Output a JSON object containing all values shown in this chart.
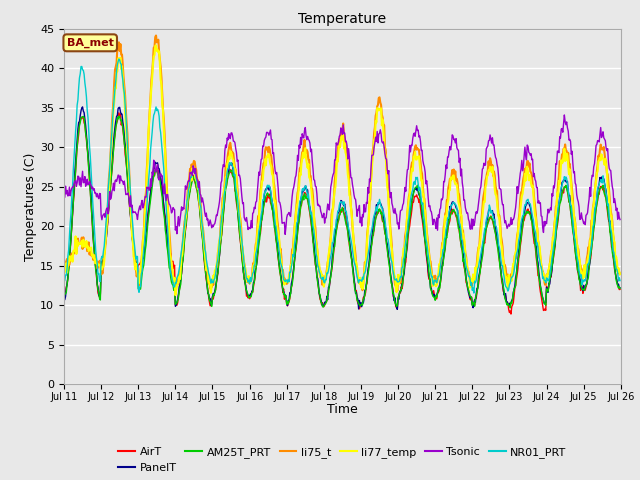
{
  "title": "Temperature",
  "xlabel": "Time",
  "ylabel": "Temperatures (C)",
  "ylim": [
    0,
    45
  ],
  "yticks": [
    0,
    5,
    10,
    15,
    20,
    25,
    30,
    35,
    40,
    45
  ],
  "bg_color": "#e8e8e8",
  "plot_bg_color": "#e8e8e8",
  "grid_color": "#ffffff",
  "annotation_text": "BA_met",
  "annotation_bg": "#ffff99",
  "annotation_border": "#8B4513",
  "annotation_text_color": "#8B0000",
  "series": {
    "AirT": {
      "color": "#ff0000",
      "lw": 1.0
    },
    "PanelT": {
      "color": "#00008b",
      "lw": 1.0
    },
    "AM25T_PRT": {
      "color": "#00cc00",
      "lw": 1.0
    },
    "li75_t": {
      "color": "#ff8c00",
      "lw": 1.5
    },
    "li77_temp": {
      "color": "#ffff00",
      "lw": 1.5
    },
    "Tsonic": {
      "color": "#9900cc",
      "lw": 1.0
    },
    "NR01_PRT": {
      "color": "#00cccc",
      "lw": 1.0
    }
  },
  "legend_order": [
    "AirT",
    "PanelT",
    "AM25T_PRT",
    "li75_t",
    "li77_temp",
    "Tsonic",
    "NR01_PRT"
  ],
  "n_days": 15,
  "start_day": 11,
  "AirT_peaks": [
    34,
    34,
    27,
    26,
    27,
    24,
    24,
    22,
    22,
    24,
    22,
    21,
    22,
    25,
    25
  ],
  "AirT_mins": [
    11,
    15,
    15,
    10,
    11,
    11,
    10,
    10,
    10,
    11,
    11,
    10,
    9,
    12,
    12
  ],
  "PanelT_peaks": [
    35,
    35,
    28,
    27,
    28,
    25,
    25,
    23,
    23,
    25,
    23,
    22,
    23,
    26,
    26
  ],
  "PanelT_mins": [
    11,
    15,
    13,
    10,
    11,
    11,
    10,
    10,
    10,
    11,
    11,
    10,
    10,
    12,
    12
  ],
  "AM25T_peaks": [
    34,
    34,
    27,
    26,
    27,
    24,
    24,
    22,
    22,
    25,
    22,
    21,
    22,
    25,
    25
  ],
  "AM25T_mins": [
    11,
    15,
    12,
    10,
    11,
    11,
    10,
    10,
    10,
    11,
    11,
    10,
    10,
    12,
    12
  ],
  "li75_peaks": [
    18,
    43,
    44,
    28,
    30,
    30,
    30,
    32,
    36,
    30,
    27,
    28,
    28,
    30,
    30
  ],
  "li75_mins": [
    15,
    14,
    13,
    12,
    13,
    13,
    13,
    13,
    12,
    13,
    13,
    13,
    13,
    14,
    14
  ],
  "li77_peaks": [
    18,
    41,
    43,
    27,
    29,
    29,
    29,
    31,
    35,
    29,
    26,
    27,
    27,
    29,
    29
  ],
  "li77_mins": [
    15,
    14,
    13,
    12,
    13,
    13,
    13,
    13,
    12,
    13,
    13,
    13,
    13,
    14,
    14
  ],
  "Tsonic_peaks": [
    26,
    26,
    27,
    27,
    32,
    32,
    32,
    32,
    32,
    32,
    31,
    31,
    30,
    33,
    32
  ],
  "Tsonic_mins": [
    24,
    21,
    22,
    20,
    20,
    20,
    21,
    21,
    21,
    21,
    20,
    20,
    20,
    21,
    21
  ],
  "NR01_peaks": [
    40,
    41,
    35,
    27,
    28,
    25,
    25,
    23,
    23,
    26,
    23,
    22,
    23,
    26,
    26
  ],
  "NR01_mins": [
    13,
    16,
    12,
    13,
    13,
    13,
    13,
    13,
    13,
    13,
    13,
    12,
    13,
    13,
    13
  ]
}
